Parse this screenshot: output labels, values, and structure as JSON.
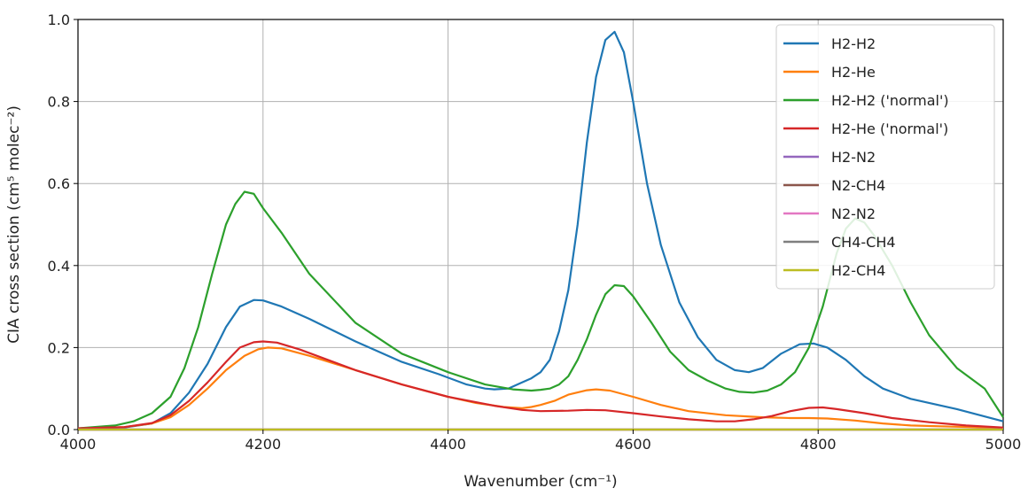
{
  "chart_data": {
    "type": "line",
    "xlabel": "Wavenumber (cm⁻¹)",
    "ylabel": "CIA cross section (cm⁵ molec⁻²)",
    "xlim": [
      4000,
      5000
    ],
    "ylim": [
      0,
      1.0
    ],
    "xticks": [
      4000,
      4200,
      4400,
      4600,
      4800,
      5000
    ],
    "xtick_labels": [
      "4000",
      "4200",
      "4400",
      "4600",
      "4800",
      "5000"
    ],
    "yticks": [
      0.0,
      0.2,
      0.4,
      0.6,
      0.8,
      1.0
    ],
    "ytick_labels": [
      "0.0",
      "0.2",
      "0.4",
      "0.6",
      "0.8",
      "1.0"
    ],
    "grid": true,
    "legend_position": "top-right",
    "series": [
      {
        "name": "H2-H2",
        "color": "#1f77b4",
        "points": [
          [
            4000,
            0.003
          ],
          [
            4050,
            0.005
          ],
          [
            4080,
            0.015
          ],
          [
            4100,
            0.04
          ],
          [
            4120,
            0.09
          ],
          [
            4140,
            0.16
          ],
          [
            4160,
            0.25
          ],
          [
            4175,
            0.3
          ],
          [
            4190,
            0.316
          ],
          [
            4200,
            0.315
          ],
          [
            4220,
            0.3
          ],
          [
            4250,
            0.27
          ],
          [
            4300,
            0.215
          ],
          [
            4350,
            0.165
          ],
          [
            4390,
            0.135
          ],
          [
            4420,
            0.11
          ],
          [
            4440,
            0.1
          ],
          [
            4450,
            0.098
          ],
          [
            4465,
            0.1
          ],
          [
            4480,
            0.115
          ],
          [
            4490,
            0.125
          ],
          [
            4500,
            0.14
          ],
          [
            4510,
            0.17
          ],
          [
            4520,
            0.24
          ],
          [
            4530,
            0.34
          ],
          [
            4540,
            0.5
          ],
          [
            4550,
            0.7
          ],
          [
            4560,
            0.86
          ],
          [
            4570,
            0.95
          ],
          [
            4580,
            0.97
          ],
          [
            4590,
            0.92
          ],
          [
            4600,
            0.8
          ],
          [
            4615,
            0.6
          ],
          [
            4630,
            0.45
          ],
          [
            4650,
            0.31
          ],
          [
            4670,
            0.225
          ],
          [
            4690,
            0.17
          ],
          [
            4710,
            0.145
          ],
          [
            4725,
            0.14
          ],
          [
            4740,
            0.15
          ],
          [
            4760,
            0.185
          ],
          [
            4780,
            0.208
          ],
          [
            4795,
            0.21
          ],
          [
            4810,
            0.2
          ],
          [
            4830,
            0.17
          ],
          [
            4850,
            0.13
          ],
          [
            4870,
            0.1
          ],
          [
            4900,
            0.075
          ],
          [
            4950,
            0.05
          ],
          [
            5000,
            0.02
          ]
        ]
      },
      {
        "name": "H2-He",
        "color": "#ff7f0e",
        "points": [
          [
            4000,
            0.003
          ],
          [
            4050,
            0.006
          ],
          [
            4080,
            0.015
          ],
          [
            4100,
            0.03
          ],
          [
            4120,
            0.06
          ],
          [
            4140,
            0.1
          ],
          [
            4160,
            0.145
          ],
          [
            4180,
            0.18
          ],
          [
            4195,
            0.196
          ],
          [
            4205,
            0.2
          ],
          [
            4220,
            0.198
          ],
          [
            4250,
            0.18
          ],
          [
            4300,
            0.145
          ],
          [
            4350,
            0.11
          ],
          [
            4400,
            0.08
          ],
          [
            4430,
            0.065
          ],
          [
            4460,
            0.055
          ],
          [
            4480,
            0.052
          ],
          [
            4490,
            0.055
          ],
          [
            4500,
            0.06
          ],
          [
            4515,
            0.07
          ],
          [
            4530,
            0.085
          ],
          [
            4550,
            0.096
          ],
          [
            4560,
            0.098
          ],
          [
            4575,
            0.095
          ],
          [
            4600,
            0.08
          ],
          [
            4630,
            0.06
          ],
          [
            4660,
            0.045
          ],
          [
            4700,
            0.035
          ],
          [
            4740,
            0.03
          ],
          [
            4770,
            0.028
          ],
          [
            4790,
            0.028
          ],
          [
            4810,
            0.027
          ],
          [
            4840,
            0.022
          ],
          [
            4870,
            0.015
          ],
          [
            4900,
            0.01
          ],
          [
            4950,
            0.007
          ],
          [
            5000,
            0.004
          ]
        ]
      },
      {
        "name": "H2-H2 ('normal')",
        "color": "#2ca02c",
        "points": [
          [
            4000,
            0.003
          ],
          [
            4040,
            0.01
          ],
          [
            4060,
            0.02
          ],
          [
            4080,
            0.04
          ],
          [
            4100,
            0.08
          ],
          [
            4115,
            0.15
          ],
          [
            4130,
            0.25
          ],
          [
            4145,
            0.38
          ],
          [
            4160,
            0.5
          ],
          [
            4170,
            0.55
          ],
          [
            4180,
            0.58
          ],
          [
            4190,
            0.575
          ],
          [
            4200,
            0.54
          ],
          [
            4220,
            0.48
          ],
          [
            4250,
            0.38
          ],
          [
            4300,
            0.26
          ],
          [
            4350,
            0.185
          ],
          [
            4400,
            0.14
          ],
          [
            4440,
            0.11
          ],
          [
            4470,
            0.098
          ],
          [
            4490,
            0.095
          ],
          [
            4500,
            0.097
          ],
          [
            4510,
            0.1
          ],
          [
            4520,
            0.11
          ],
          [
            4530,
            0.13
          ],
          [
            4540,
            0.17
          ],
          [
            4550,
            0.22
          ],
          [
            4560,
            0.28
          ],
          [
            4570,
            0.33
          ],
          [
            4580,
            0.352
          ],
          [
            4590,
            0.35
          ],
          [
            4600,
            0.325
          ],
          [
            4620,
            0.26
          ],
          [
            4640,
            0.19
          ],
          [
            4660,
            0.145
          ],
          [
            4680,
            0.12
          ],
          [
            4700,
            0.1
          ],
          [
            4715,
            0.092
          ],
          [
            4730,
            0.09
          ],
          [
            4745,
            0.095
          ],
          [
            4760,
            0.11
          ],
          [
            4775,
            0.14
          ],
          [
            4790,
            0.2
          ],
          [
            4805,
            0.3
          ],
          [
            4820,
            0.43
          ],
          [
            4830,
            0.49
          ],
          [
            4840,
            0.515
          ],
          [
            4850,
            0.505
          ],
          [
            4860,
            0.475
          ],
          [
            4880,
            0.4
          ],
          [
            4900,
            0.31
          ],
          [
            4920,
            0.23
          ],
          [
            4950,
            0.15
          ],
          [
            4980,
            0.1
          ],
          [
            5000,
            0.03
          ]
        ]
      },
      {
        "name": "H2-He ('normal')",
        "color": "#d62728",
        "points": [
          [
            4000,
            0.003
          ],
          [
            4050,
            0.006
          ],
          [
            4080,
            0.016
          ],
          [
            4100,
            0.035
          ],
          [
            4120,
            0.07
          ],
          [
            4140,
            0.115
          ],
          [
            4160,
            0.165
          ],
          [
            4175,
            0.2
          ],
          [
            4190,
            0.213
          ],
          [
            4200,
            0.215
          ],
          [
            4215,
            0.212
          ],
          [
            4240,
            0.195
          ],
          [
            4270,
            0.17
          ],
          [
            4300,
            0.145
          ],
          [
            4350,
            0.11
          ],
          [
            4400,
            0.08
          ],
          [
            4450,
            0.058
          ],
          [
            4480,
            0.048
          ],
          [
            4500,
            0.045
          ],
          [
            4530,
            0.046
          ],
          [
            4550,
            0.048
          ],
          [
            4570,
            0.047
          ],
          [
            4600,
            0.04
          ],
          [
            4630,
            0.032
          ],
          [
            4660,
            0.025
          ],
          [
            4690,
            0.02
          ],
          [
            4710,
            0.02
          ],
          [
            4730,
            0.025
          ],
          [
            4750,
            0.033
          ],
          [
            4770,
            0.045
          ],
          [
            4790,
            0.053
          ],
          [
            4805,
            0.054
          ],
          [
            4820,
            0.05
          ],
          [
            4850,
            0.04
          ],
          [
            4880,
            0.028
          ],
          [
            4920,
            0.018
          ],
          [
            4960,
            0.01
          ],
          [
            5000,
            0.005
          ]
        ]
      },
      {
        "name": "H2-N2",
        "color": "#9467bd",
        "points": [
          [
            4000,
            0.0
          ],
          [
            5000,
            0.0
          ]
        ]
      },
      {
        "name": "N2-CH4",
        "color": "#8c564b",
        "points": [
          [
            4000,
            0.0
          ],
          [
            5000,
            0.0
          ]
        ]
      },
      {
        "name": "N2-N2",
        "color": "#e377c2",
        "points": [
          [
            4000,
            0.0
          ],
          [
            5000,
            0.0
          ]
        ]
      },
      {
        "name": "CH4-CH4",
        "color": "#7f7f7f",
        "points": [
          [
            4000,
            0.0
          ],
          [
            5000,
            0.0
          ]
        ]
      },
      {
        "name": "H2-CH4",
        "color": "#bcbd22",
        "points": [
          [
            4000,
            0.0
          ],
          [
            5000,
            0.0
          ]
        ]
      }
    ]
  }
}
